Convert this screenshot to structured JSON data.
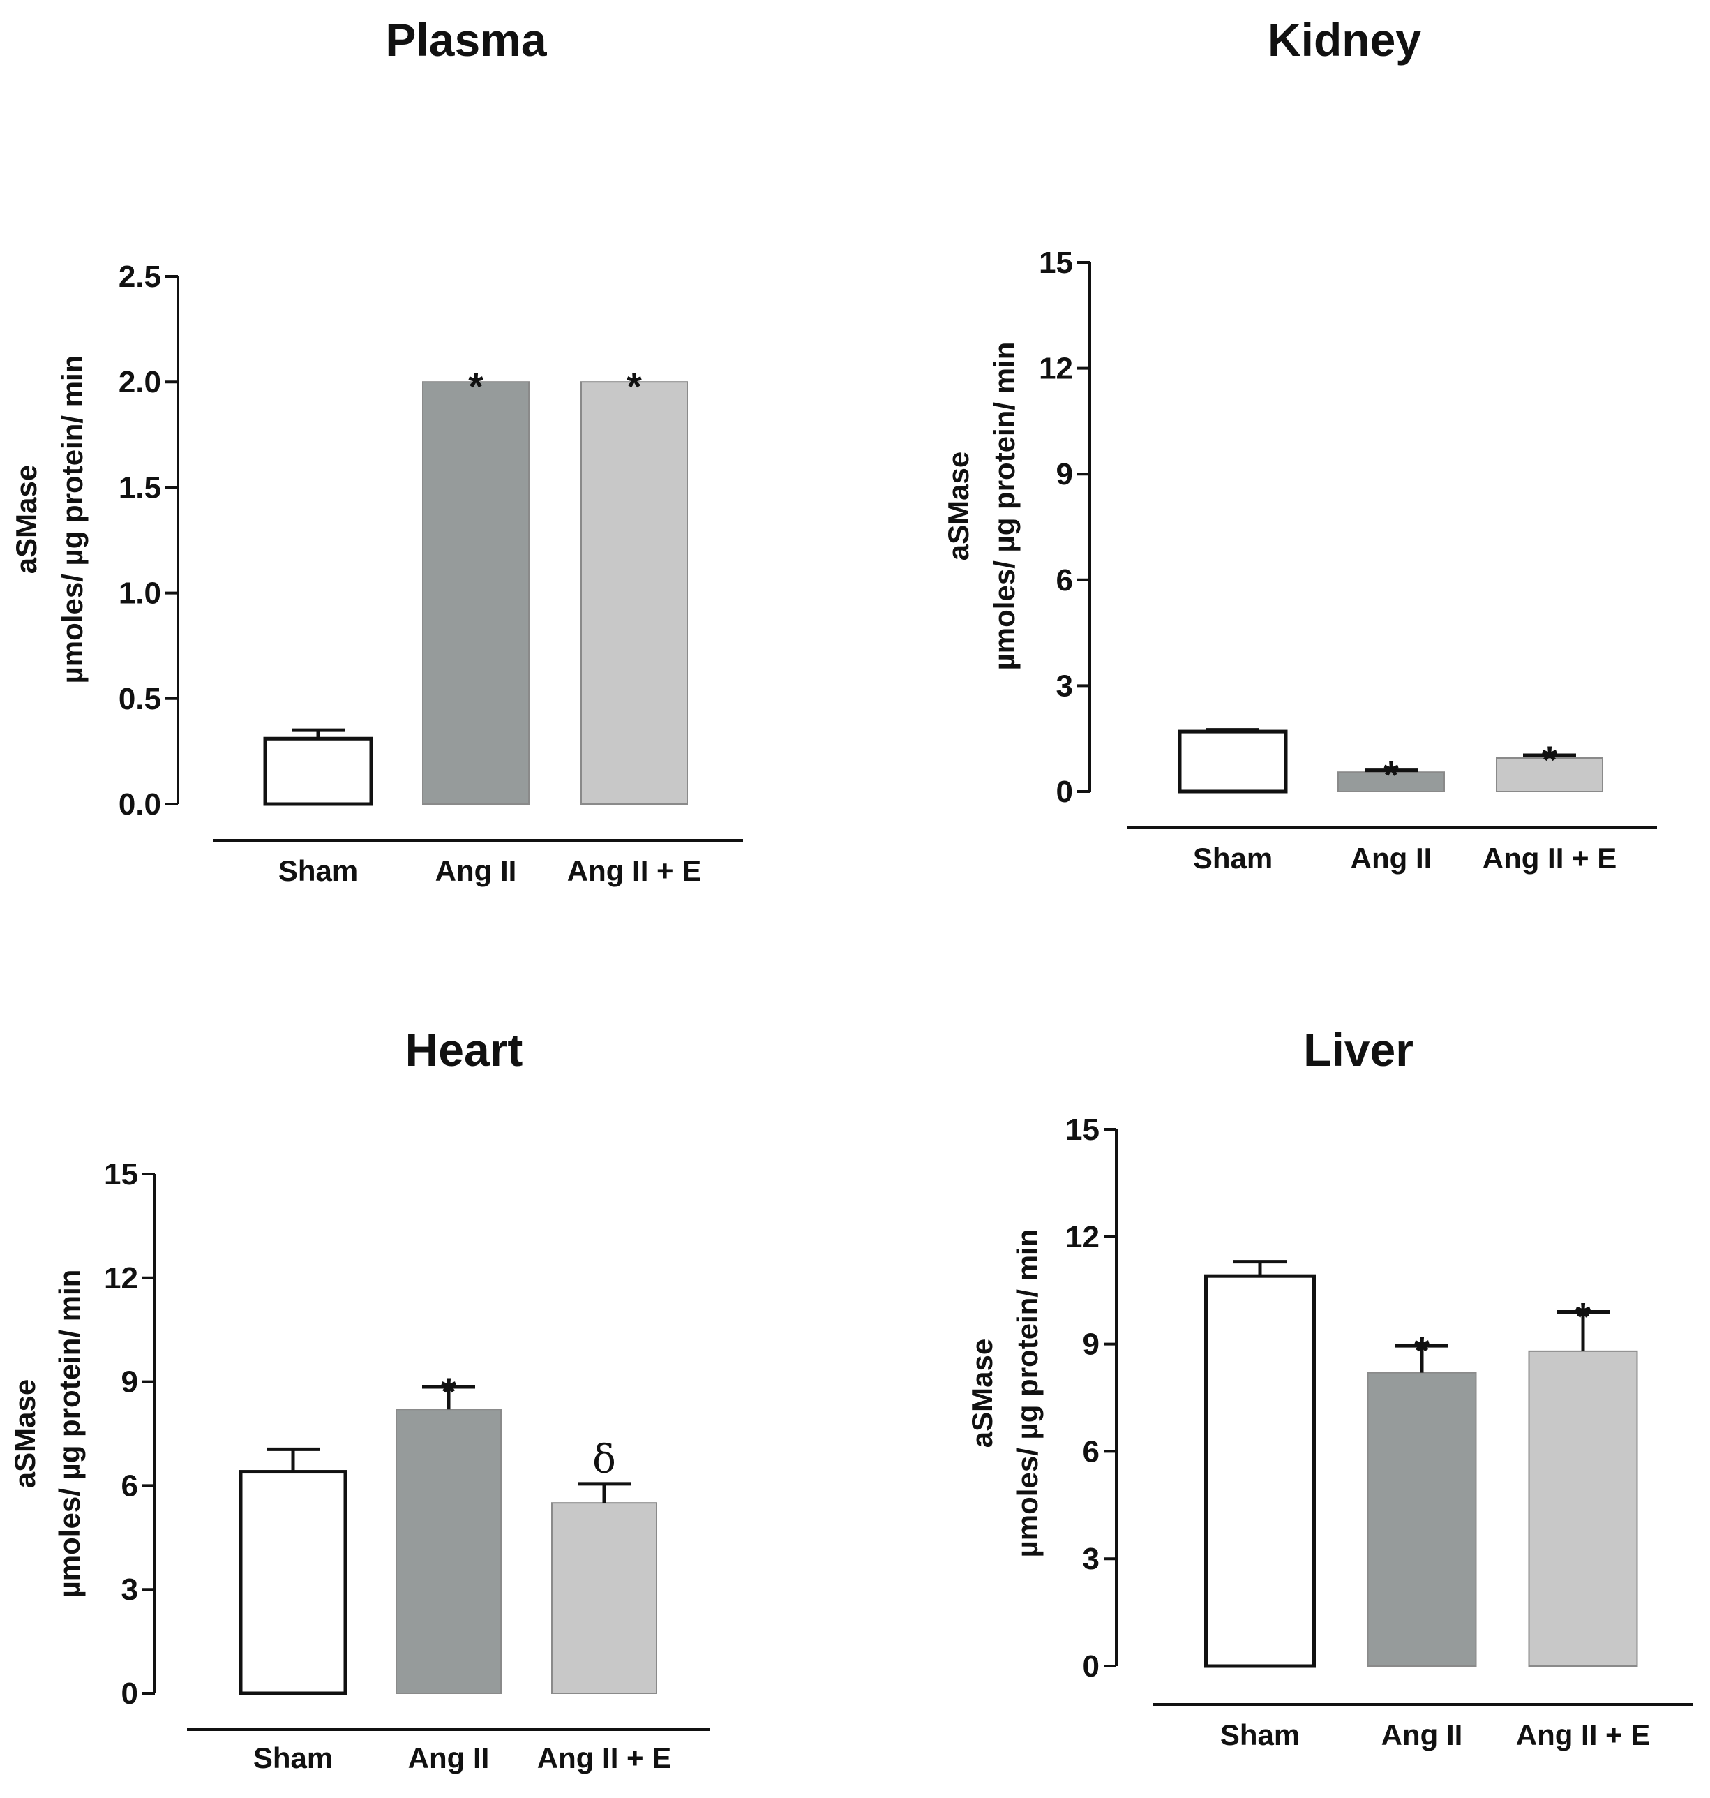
{
  "chart_data": [
    {
      "type": "bar",
      "title": "Plasma",
      "ylabel_line1": "aSMase",
      "ylabel_line2": "µmoles/ µg protein/ min",
      "xlabel": "",
      "categories": [
        "Sham",
        "Ang II",
        "Ang II + E"
      ],
      "values": [
        0.31,
        2.0,
        2.0
      ],
      "errors": [
        0.04,
        0.0,
        0.0
      ],
      "annotations": [
        "",
        "*",
        "*"
      ],
      "fills": [
        "#ffffff",
        "#969b9b",
        "#c8c8c8"
      ],
      "ylim": [
        0,
        2.5
      ],
      "yticks": [
        0.0,
        0.5,
        1.0,
        1.5,
        2.0,
        2.5
      ],
      "ytick_labels": [
        "0.0",
        "0.5",
        "1.0",
        "1.5",
        "2.0",
        "2.5"
      ]
    },
    {
      "type": "bar",
      "title": "Kidney",
      "ylabel_line1": "aSMase",
      "ylabel_line2": "µmoles/ µg protein/ min",
      "xlabel": "",
      "categories": [
        "Sham",
        "Ang II",
        "Ang II + E"
      ],
      "values": [
        1.7,
        0.55,
        0.95
      ],
      "errors": [
        0.05,
        0.05,
        0.08
      ],
      "annotations": [
        "",
        "*",
        "*"
      ],
      "fills": [
        "#ffffff",
        "#969b9b",
        "#c8c8c8"
      ],
      "ylim": [
        0,
        15
      ],
      "yticks": [
        0,
        3,
        6,
        9,
        12,
        15
      ],
      "ytick_labels": [
        "0",
        "3",
        "6",
        "9",
        "12",
        "15"
      ]
    },
    {
      "type": "bar",
      "title": "Heart",
      "ylabel_line1": "aSMase",
      "ylabel_line2": "µmoles/ µg protein/ min",
      "xlabel": "",
      "categories": [
        "Sham",
        "Ang II",
        "Ang II + E"
      ],
      "values": [
        6.4,
        8.2,
        5.5
      ],
      "errors": [
        0.65,
        0.65,
        0.55
      ],
      "annotations": [
        "",
        "*",
        "δ"
      ],
      "fills": [
        "#ffffff",
        "#969b9b",
        "#c8c8c8"
      ],
      "ylim": [
        0,
        15
      ],
      "yticks": [
        0,
        3,
        6,
        9,
        12,
        15
      ],
      "ytick_labels": [
        "0",
        "3",
        "6",
        "9",
        "12",
        "15"
      ]
    },
    {
      "type": "bar",
      "title": "Liver",
      "ylabel_line1": "aSMase",
      "ylabel_line2": "µmoles/ µg protein/ min",
      "xlabel": "",
      "categories": [
        "Sham",
        "Ang II",
        "Ang II + E"
      ],
      "values": [
        10.9,
        8.2,
        8.8
      ],
      "errors": [
        0.4,
        0.75,
        1.1
      ],
      "annotations": [
        "",
        "*",
        "*"
      ],
      "fills": [
        "#ffffff",
        "#969b9b",
        "#c8c8c8"
      ],
      "ylim": [
        0,
        15
      ],
      "yticks": [
        0,
        3,
        6,
        9,
        12,
        15
      ],
      "ytick_labels": [
        "0",
        "3",
        "6",
        "9",
        "12",
        "15"
      ]
    }
  ]
}
